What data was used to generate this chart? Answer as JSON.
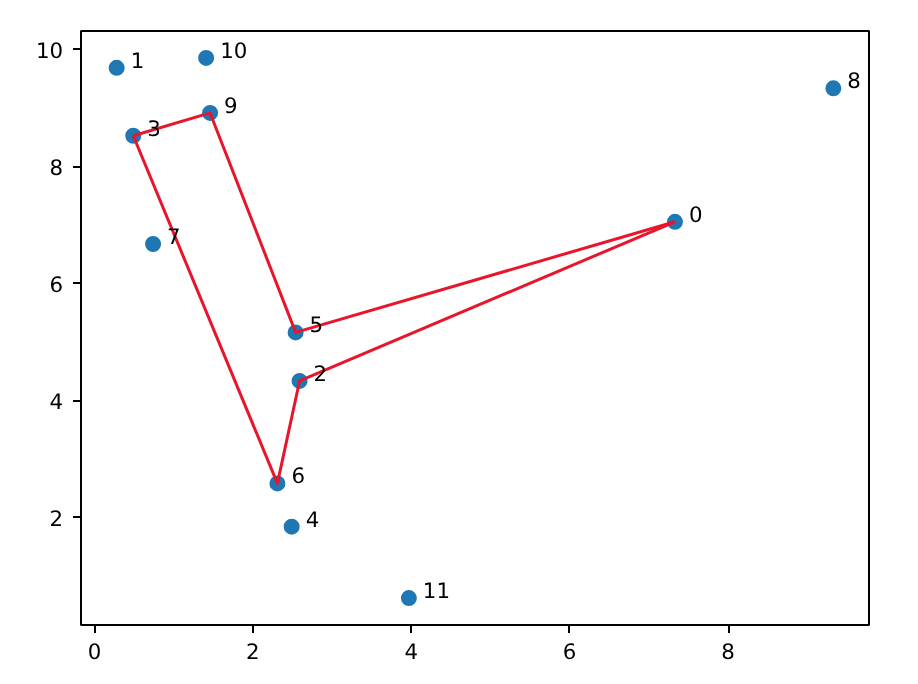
{
  "chart_data": {
    "type": "scatter",
    "xlim": [
      -0.17,
      9.78
    ],
    "ylim": [
      0.17,
      10.32
    ],
    "xticks": [
      0,
      2,
      4,
      6,
      8
    ],
    "yticks": [
      2,
      4,
      6,
      8,
      10
    ],
    "grid": false,
    "marker": "circle",
    "series": [
      {
        "color": "#1f77b4",
        "x": [
          7.33,
          0.28,
          2.59,
          0.49,
          2.49,
          2.54,
          2.31,
          0.74,
          9.33,
          1.46,
          1.41,
          3.97
        ],
        "values": [
          7.06,
          9.69,
          4.34,
          8.53,
          1.85,
          5.17,
          2.59,
          6.68,
          9.34,
          8.92,
          9.86,
          0.63
        ]
      },
      {
        "type": "line",
        "color": "#e8152b",
        "marker": "none",
        "x": [
          7.33,
          2.54,
          1.46,
          0.49
        ],
        "values": [
          7.06,
          5.17,
          8.92,
          8.53
        ]
      },
      {
        "type": "line",
        "color": "#e8152b",
        "marker": "none",
        "x": [
          0.49,
          2.31,
          2.59,
          7.33
        ],
        "values": [
          8.53,
          2.59,
          4.34,
          7.06
        ]
      }
    ],
    "annotations": [
      {
        "text": "0",
        "x": 7.33,
        "y": 7.06
      },
      {
        "text": "1",
        "x": 0.28,
        "y": 9.69
      },
      {
        "text": "2",
        "x": 2.59,
        "y": 4.34
      },
      {
        "text": "3",
        "x": 0.49,
        "y": 8.53
      },
      {
        "text": "4",
        "x": 2.49,
        "y": 1.85
      },
      {
        "text": "5",
        "x": 2.54,
        "y": 5.17
      },
      {
        "text": "6",
        "x": 2.31,
        "y": 2.59
      },
      {
        "text": "7",
        "x": 0.74,
        "y": 6.68
      },
      {
        "text": "8",
        "x": 9.33,
        "y": 9.34
      },
      {
        "text": "9",
        "x": 1.46,
        "y": 8.92
      },
      {
        "text": "10",
        "x": 1.41,
        "y": 9.86
      },
      {
        "text": "11",
        "x": 3.97,
        "y": 0.63
      }
    ]
  }
}
